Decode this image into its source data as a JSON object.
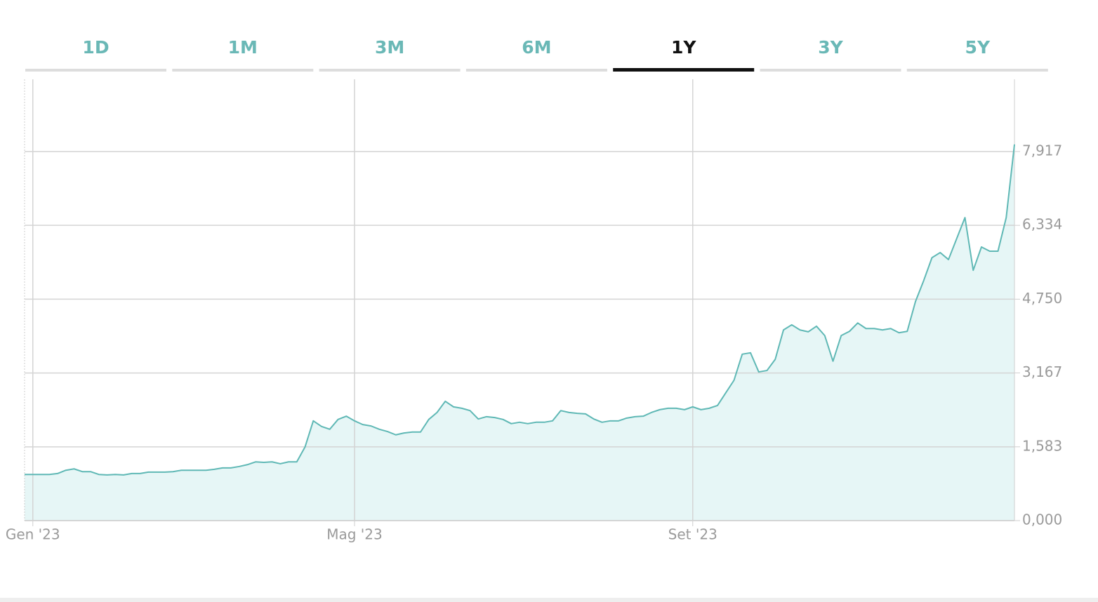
{
  "tabs": [
    "1D",
    "1M",
    "3M",
    "6M",
    "1Y",
    "3Y",
    "5Y"
  ],
  "active_tab": 4,
  "chart_data": {
    "type": "area",
    "color": "#5fb8b5",
    "fill": "#e6f6f6",
    "grid": true,
    "categories": [
      null,
      "Gen '23",
      null,
      null,
      null,
      null,
      null,
      null,
      null,
      null,
      null,
      null,
      null,
      null,
      null,
      null,
      null,
      null,
      null,
      null,
      null,
      null,
      null,
      null,
      null,
      null,
      null,
      null,
      null,
      null,
      null,
      null,
      null,
      null,
      null,
      null,
      null,
      null,
      null,
      null,
      "Mag '23",
      null,
      null,
      null,
      null,
      null,
      null,
      null,
      null,
      null,
      null,
      null,
      null,
      null,
      null,
      null,
      null,
      null,
      null,
      null,
      null,
      null,
      null,
      null,
      null,
      null,
      null,
      null,
      null,
      null,
      null,
      null,
      null,
      null,
      null,
      null,
      null,
      null,
      null,
      null,
      null,
      "Set '23",
      null,
      null,
      null,
      null,
      null,
      null,
      null,
      null,
      null,
      null,
      null,
      null,
      null,
      null,
      null,
      null,
      null,
      null,
      null,
      null,
      null,
      null,
      null,
      null,
      null,
      null,
      null,
      null,
      null,
      null,
      null,
      null,
      null,
      null,
      null,
      null,
      null,
      null,
      null
    ],
    "values": [
      0.99,
      0.99,
      0.99,
      0.99,
      1.01,
      1.08,
      1.11,
      1.05,
      1.05,
      0.99,
      0.98,
      0.99,
      0.98,
      1.01,
      1.01,
      1.04,
      1.04,
      1.04,
      1.05,
      1.08,
      1.08,
      1.08,
      1.08,
      1.1,
      1.13,
      1.13,
      1.16,
      1.2,
      1.26,
      1.25,
      1.26,
      1.22,
      1.26,
      1.26,
      1.58,
      2.14,
      2.02,
      1.96,
      2.17,
      2.24,
      2.14,
      2.06,
      2.03,
      1.96,
      1.91,
      1.84,
      1.88,
      1.9,
      1.9,
      2.17,
      2.32,
      2.56,
      2.44,
      2.41,
      2.36,
      2.18,
      2.23,
      2.21,
      2.17,
      2.08,
      2.11,
      2.08,
      2.11,
      2.11,
      2.14,
      2.36,
      2.32,
      2.3,
      2.29,
      2.18,
      2.11,
      2.14,
      2.14,
      2.2,
      2.23,
      2.24,
      2.32,
      2.38,
      2.41,
      2.41,
      2.38,
      2.44,
      2.38,
      2.41,
      2.47,
      2.74,
      3.01,
      3.57,
      3.6,
      3.19,
      3.22,
      3.46,
      4.09,
      4.2,
      4.09,
      4.05,
      4.17,
      3.97,
      3.42,
      3.97,
      4.06,
      4.24,
      4.12,
      4.12,
      4.09,
      4.12,
      4.03,
      4.06,
      4.7,
      5.15,
      5.64,
      5.75,
      5.6,
      6.05,
      6.5,
      5.37,
      5.87,
      5.78,
      5.78,
      6.5,
      8.07
    ],
    "ylim": [
      0,
      9.467
    ],
    "yticks": [
      {
        "value": 0,
        "label": "0,000"
      },
      {
        "value": 1.583,
        "label": "1,583"
      },
      {
        "value": 3.167,
        "label": "3,167"
      },
      {
        "value": 4.75,
        "label": "4,750"
      },
      {
        "value": 6.334,
        "label": "6,334"
      },
      {
        "value": 7.917,
        "label": "7,917"
      }
    ]
  }
}
